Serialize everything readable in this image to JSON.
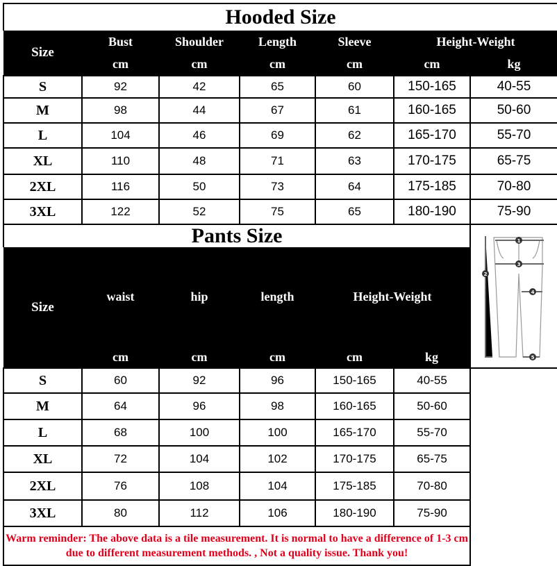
{
  "hooded": {
    "title": "Hooded Size",
    "headers": [
      "Size",
      "Bust",
      "Shoulder",
      "Length",
      "Sleeve",
      "Height-Weight"
    ],
    "units": [
      "cm",
      "cm",
      "cm",
      "cm",
      "cm",
      "kg"
    ],
    "rows": [
      [
        "S",
        "92",
        "42",
        "65",
        "60",
        "150-165",
        "40-55"
      ],
      [
        "M",
        "98",
        "44",
        "67",
        "61",
        "160-165",
        "50-60"
      ],
      [
        "L",
        "104",
        "46",
        "69",
        "62",
        "165-170",
        "55-70"
      ],
      [
        "XL",
        "110",
        "48",
        "71",
        "63",
        "170-175",
        "65-75"
      ],
      [
        "2XL",
        "116",
        "50",
        "73",
        "64",
        "175-185",
        "70-80"
      ],
      [
        "3XL",
        "122",
        "52",
        "75",
        "65",
        "180-190",
        "75-90"
      ]
    ]
  },
  "pants": {
    "title": "Pants Size",
    "headers": [
      "Size",
      "waist",
      "hip",
      "length",
      "Height-Weight"
    ],
    "units": [
      "cm",
      "cm",
      "cm",
      "cm",
      "kg"
    ],
    "rows": [
      [
        "S",
        "60",
        "92",
        "96",
        "150-165",
        "40-55"
      ],
      [
        "M",
        "64",
        "96",
        "98",
        "160-165",
        "50-60"
      ],
      [
        "L",
        "68",
        "100",
        "100",
        "165-170",
        "55-70"
      ],
      [
        "XL",
        "72",
        "104",
        "102",
        "170-175",
        "65-75"
      ],
      [
        "2XL",
        "76",
        "108",
        "104",
        "175-185",
        "70-80"
      ],
      [
        "3XL",
        "80",
        "112",
        "106",
        "180-190",
        "75-90"
      ]
    ],
    "diagram_markers": [
      "1",
      "2",
      "3",
      "4",
      "5"
    ]
  },
  "reminder": "Warm reminder: The above data is a tile measurement. It is normal to have a difference of 1-3 cm due to different measurement methods. , Not a quality issue. Thank you!",
  "colors": {
    "header_bg": "#000000",
    "reminder_text": "#e0001b"
  }
}
